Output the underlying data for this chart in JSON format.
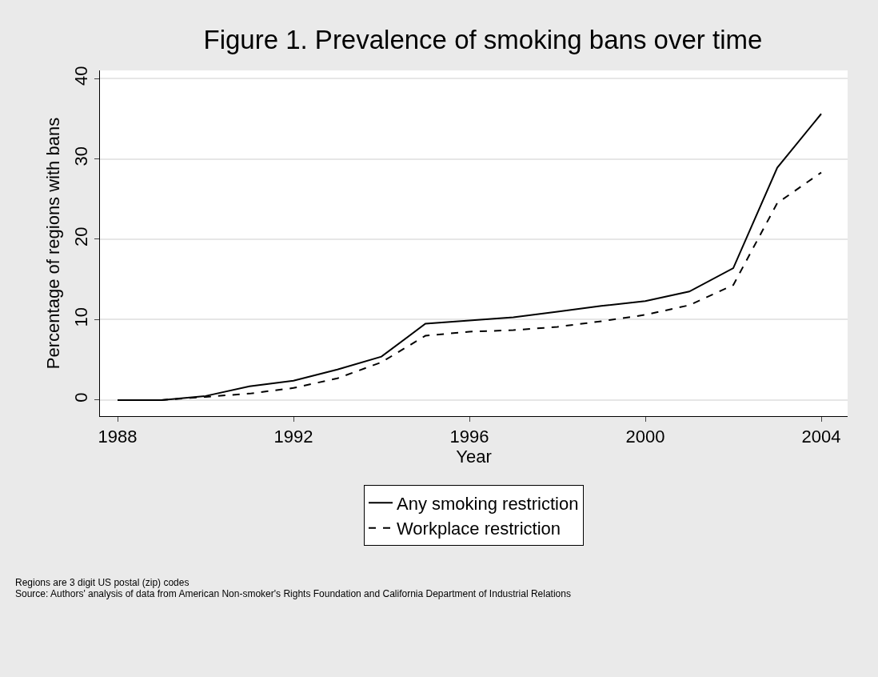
{
  "chart_data": {
    "type": "line",
    "title": "Figure 1. Prevalence of smoking bans over time",
    "xlabel": "Year",
    "ylabel": "Percentage of regions with bans",
    "x": [
      1988,
      1989,
      1990,
      1991,
      1992,
      1993,
      1994,
      1995,
      1996,
      1997,
      1998,
      1999,
      2000,
      2001,
      2002,
      2003,
      2004
    ],
    "series": [
      {
        "name": "Any smoking restriction",
        "color": "#000000",
        "line_style": "solid",
        "values": [
          0,
          0,
          0.5,
          1.7,
          2.4,
          3.8,
          5.4,
          9.5,
          9.9,
          10.3,
          11,
          11.7,
          12.3,
          13.5,
          16.4,
          28.9,
          35.6
        ]
      },
      {
        "name": "Workplace restriction",
        "color": "#000000",
        "line_style": "dashed",
        "values": [
          0,
          0,
          0.4,
          0.8,
          1.5,
          2.7,
          4.7,
          8,
          8.5,
          8.7,
          9.1,
          9.8,
          10.6,
          11.8,
          14.3,
          24.5,
          28.3
        ]
      }
    ],
    "xlim": [
      1987.6,
      2004.6
    ],
    "xticks": [
      1988,
      1992,
      1996,
      2000,
      2004
    ],
    "ylim": [
      -2,
      41
    ],
    "yticks": [
      0,
      10,
      20,
      30,
      40
    ],
    "grid": "y",
    "legend": "bottom",
    "marker": "none",
    "annotations": [
      "Regions are 3 digit US postal (zip) codes",
      "Source: Authors' analysis of data from American Non-smoker's Rights Foundation and California Department of Industrial Relations"
    ]
  }
}
